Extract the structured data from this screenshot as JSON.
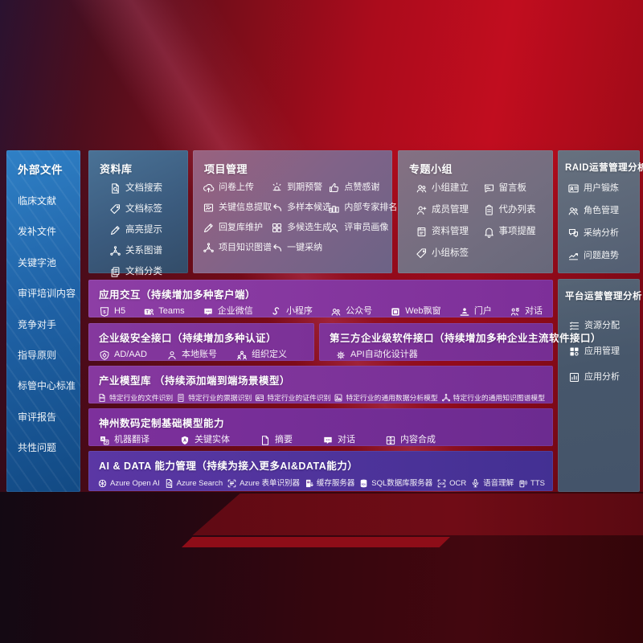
{
  "colors": {
    "background_red": "#c10d1f",
    "panel_blue": "#2e7cc2",
    "accent_purple": "#7d2f99",
    "ai_row_indigo": "#4b339b"
  },
  "left_column": {
    "title": "外部文件",
    "items": [
      "临床文献",
      "发补文件",
      "关键字池",
      "审评培训内容",
      "竞争对手",
      "指导原则",
      "标管中心标准",
      "审评报告",
      "共性问题"
    ]
  },
  "library": {
    "title": "资料库",
    "items": [
      {
        "icon": "doc-search",
        "label": "文档搜索"
      },
      {
        "icon": "tag",
        "label": "文档标签"
      },
      {
        "icon": "pencil",
        "label": "高亮提示"
      },
      {
        "icon": "network",
        "label": "关系图谱"
      },
      {
        "icon": "doc-copy",
        "label": "文档分类"
      }
    ]
  },
  "project": {
    "title": "项目管理",
    "items": [
      {
        "icon": "cloud-upload",
        "label": "问卷上传"
      },
      {
        "icon": "alarm",
        "label": "到期预警"
      },
      {
        "icon": "thumbs-up",
        "label": "点赞感谢"
      },
      {
        "icon": "image-text",
        "label": "关键信息提取"
      },
      {
        "icon": "reply-arrow",
        "label": "多样本候选"
      },
      {
        "icon": "podium",
        "label": "内部专家排名"
      },
      {
        "icon": "pencil",
        "label": "回复库维护"
      },
      {
        "icon": "grid",
        "label": "多候选生成"
      },
      {
        "icon": "person",
        "label": "评审员画像"
      },
      {
        "icon": "network",
        "label": "项目知识图谱"
      },
      {
        "icon": "reply-arrow",
        "label": "一键采纳"
      }
    ]
  },
  "group": {
    "title": "专题小组",
    "items": [
      {
        "icon": "people",
        "label": "小组建立"
      },
      {
        "icon": "bbs-board",
        "label": "留言板"
      },
      {
        "icon": "person-add",
        "label": "成员管理"
      },
      {
        "icon": "clipboard",
        "label": "代办列表"
      },
      {
        "icon": "notebook",
        "label": "资料管理"
      },
      {
        "icon": "bell",
        "label": "事项提醒"
      },
      {
        "icon": "tag",
        "label": "小组标签"
      }
    ]
  },
  "raid": {
    "title": "RAID运营管理分析",
    "items": [
      {
        "icon": "id-card",
        "label": "用户锻炼"
      },
      {
        "icon": "people",
        "label": "角色管理"
      },
      {
        "icon": "chat-qa",
        "label": "采纳分析"
      },
      {
        "icon": "trend-chart",
        "label": "问题趋势"
      }
    ]
  },
  "platform": {
    "title": "平台运营管理分析",
    "items": [
      {
        "icon": "checklist",
        "label": "资源分配"
      },
      {
        "icon": "app-grid",
        "label": "应用管理"
      },
      {
        "icon": "chart-box",
        "label": "应用分析"
      }
    ]
  },
  "rows": {
    "interaction": {
      "title": "应用交互（持续增加多种客户端）",
      "items": [
        {
          "icon": "html5",
          "label": "H5"
        },
        {
          "icon": "teams",
          "label": "Teams"
        },
        {
          "icon": "chat-dots",
          "label": "企业微信"
        },
        {
          "icon": "s-curve",
          "label": "小程序"
        },
        {
          "icon": "people",
          "label": "公众号"
        },
        {
          "icon": "browser-window",
          "label": "Web飘窗"
        },
        {
          "icon": "person-desk",
          "label": "门户"
        },
        {
          "icon": "people-chat",
          "label": "对话"
        }
      ]
    },
    "security": {
      "title": "企业级安全接口（持续增加多种认证）",
      "items": [
        {
          "icon": "shield",
          "label": "AD/AAD"
        },
        {
          "icon": "person",
          "label": "本地账号"
        },
        {
          "icon": "org-people",
          "label": "组织定义"
        }
      ]
    },
    "third_party": {
      "title": "第三方企业级软件接口（持续增加多种企业主流软件接口）",
      "items": [
        {
          "icon": "gear-api",
          "label": "API自动化设计器"
        }
      ]
    },
    "industry": {
      "title": "产业模型库 （持续添加端到端场景模型）",
      "items": [
        {
          "icon": "file-scan",
          "label": "特定行业的文件识别"
        },
        {
          "icon": "doc-lines",
          "label": "特定行业的票据识别"
        },
        {
          "icon": "id-card",
          "label": "特定行业的证件识别"
        },
        {
          "icon": "image-box",
          "label": "特定行业的通用数据分析模型"
        },
        {
          "icon": "network",
          "label": "特定行业的通用知识图谱模型"
        }
      ]
    },
    "dc_models": {
      "title": "神州数码定制基础模型能力",
      "items": [
        {
          "icon": "translate",
          "label": "机器翻译"
        },
        {
          "icon": "letter-a-badge",
          "label": "关键实体"
        },
        {
          "icon": "doc",
          "label": "摘要"
        },
        {
          "icon": "chat-dots",
          "label": "对话"
        },
        {
          "icon": "puzzle",
          "label": "内容合成"
        }
      ]
    },
    "ai_data": {
      "title": "AI & DATA 能力管理（持续为接入更多AI&DATA能力）",
      "items": [
        {
          "icon": "openai",
          "label": "Azure Open AI"
        },
        {
          "icon": "doc-search",
          "label": "Azure Search"
        },
        {
          "icon": "form-brackets",
          "label": "Azure 表单识别器"
        },
        {
          "icon": "server-doc",
          "label": "缓存服务器"
        },
        {
          "icon": "database",
          "label": "SQL数据库服务器"
        },
        {
          "icon": "ocr",
          "label": "OCR"
        },
        {
          "icon": "mic",
          "label": "语音理解"
        },
        {
          "icon": "tts",
          "label": "TTS"
        }
      ]
    }
  }
}
